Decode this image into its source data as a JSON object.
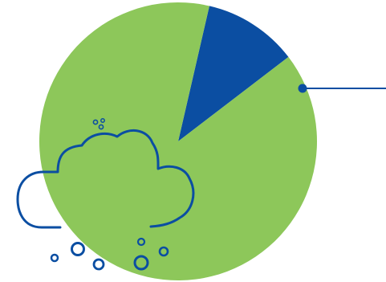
{
  "chart_data": {
    "type": "pie",
    "title": "",
    "slices": [
      {
        "value": 89,
        "color": "#8dc75a"
      },
      {
        "value": 11,
        "color": "#0b4ea2"
      }
    ],
    "start_slice": 1,
    "legend": "none",
    "leader_line": {
      "color": "#0b4ea2",
      "attached_slice": 0
    }
  },
  "decoration": {
    "icon": "cloud-snow-icon",
    "stroke_color": "#0b4ea2"
  }
}
